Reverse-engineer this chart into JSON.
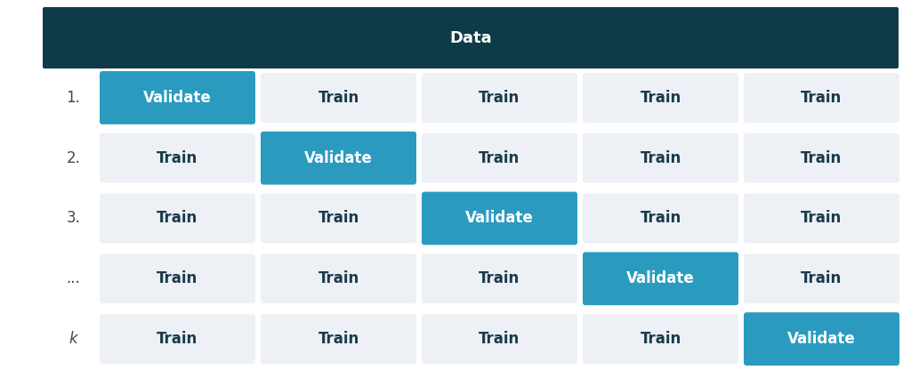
{
  "title": "Data",
  "title_bg": "#0d3b47",
  "title_fg": "#ffffff",
  "validate_color": "#2a9bbf",
  "validate_text_color": "#ffffff",
  "train_color": "#edf0f5",
  "train_text_color": "#1a3a4a",
  "row_labels": [
    "1.",
    "2.",
    "3.",
    "...",
    "k"
  ],
  "validate_col": [
    0,
    1,
    2,
    3,
    4
  ],
  "n_cols": 5,
  "n_rows": 5,
  "bg_color": "#ffffff",
  "label_font_size": 12,
  "cell_font_size": 12,
  "title_font_size": 13,
  "fig_width": 10.24,
  "fig_height": 4.16,
  "dpi": 100
}
